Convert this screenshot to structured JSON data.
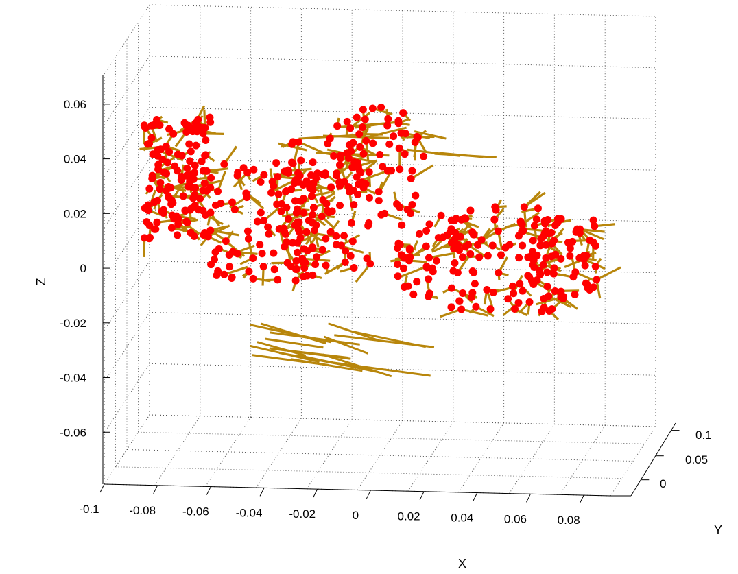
{
  "chart_data": {
    "type": "scatter",
    "projection": "3d",
    "title": "",
    "xlabel": "X",
    "ylabel": "Y",
    "zlabel": "Z",
    "grid": true,
    "xlim": [
      -0.1,
      0.09
    ],
    "ylim": [
      -0.03,
      0.12
    ],
    "zlim": [
      -0.08,
      0.07
    ],
    "xticks": [
      "-0.1",
      "-0.08",
      "-0.06",
      "-0.04",
      "-0.02",
      "0",
      "0.02",
      "0.04",
      "0.06",
      "0.08"
    ],
    "yticks": [
      "0",
      "0.05",
      "0.1"
    ],
    "zticks": [
      "0.06",
      "0.04",
      "0.02",
      "0",
      "-0.02",
      "-0.04",
      "-0.06"
    ],
    "colors": {
      "points": "#ff0000",
      "normals": "#b8860b",
      "grid": "#555555",
      "axis": "#000000"
    },
    "series": [
      {
        "kind": "points",
        "marker": "filled-circle",
        "clusters": [
          {
            "x": [
              -0.085,
              -0.06
            ],
            "z": [
              0.0,
              0.045
            ],
            "count": 130
          },
          {
            "x": [
              -0.06,
              -0.02
            ],
            "z": [
              -0.015,
              0.03
            ],
            "count": 110
          },
          {
            "x": [
              -0.03,
              0.0
            ],
            "z": [
              -0.01,
              0.045
            ],
            "count": 90
          },
          {
            "x": [
              -0.01,
              0.02
            ],
            "z": [
              0.01,
              0.05
            ],
            "count": 45
          },
          {
            "x": [
              0.01,
              0.04
            ],
            "z": [
              -0.02,
              0.015
            ],
            "count": 55
          },
          {
            "x": [
              0.03,
              0.07
            ],
            "z": [
              -0.025,
              0.015
            ],
            "count": 80
          },
          {
            "x": [
              0.06,
              0.085
            ],
            "z": [
              -0.02,
              0.01
            ],
            "count": 60
          }
        ]
      },
      {
        "kind": "segments",
        "marker": "line",
        "count": 420
      }
    ]
  }
}
